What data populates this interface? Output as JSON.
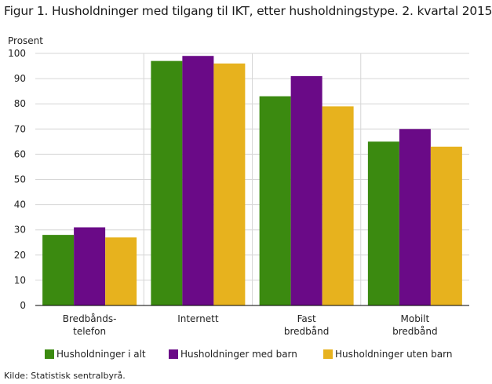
{
  "title": "Figur 1. Husholdninger med tilgang til IKT, etter husholdningstype. 2. kvartal 2015",
  "source": "Kilde: Statistisk sentralbyrå.",
  "chart_data": {
    "type": "bar",
    "ylabel": "Prosent",
    "ylim": [
      0,
      100
    ],
    "yticks": [
      0,
      10,
      20,
      30,
      40,
      50,
      60,
      70,
      80,
      90,
      100
    ],
    "categories": [
      [
        "Bredbånds-",
        "telefon"
      ],
      [
        "Internett"
      ],
      [
        "Fast",
        "bredbånd"
      ],
      [
        "Mobilt",
        "bredbånd"
      ]
    ],
    "series": [
      {
        "name": "Husholdninger i alt",
        "color": "#3b8a10",
        "values": [
          28,
          97,
          83,
          65
        ]
      },
      {
        "name": "Husholdninger med barn",
        "color": "#6a0a87",
        "values": [
          31,
          99,
          91,
          70
        ]
      },
      {
        "name": "Husholdninger uten barn",
        "color": "#e7b21e",
        "values": [
          27,
          96,
          79,
          63
        ]
      }
    ],
    "grid": true,
    "legend_position": "bottom"
  }
}
